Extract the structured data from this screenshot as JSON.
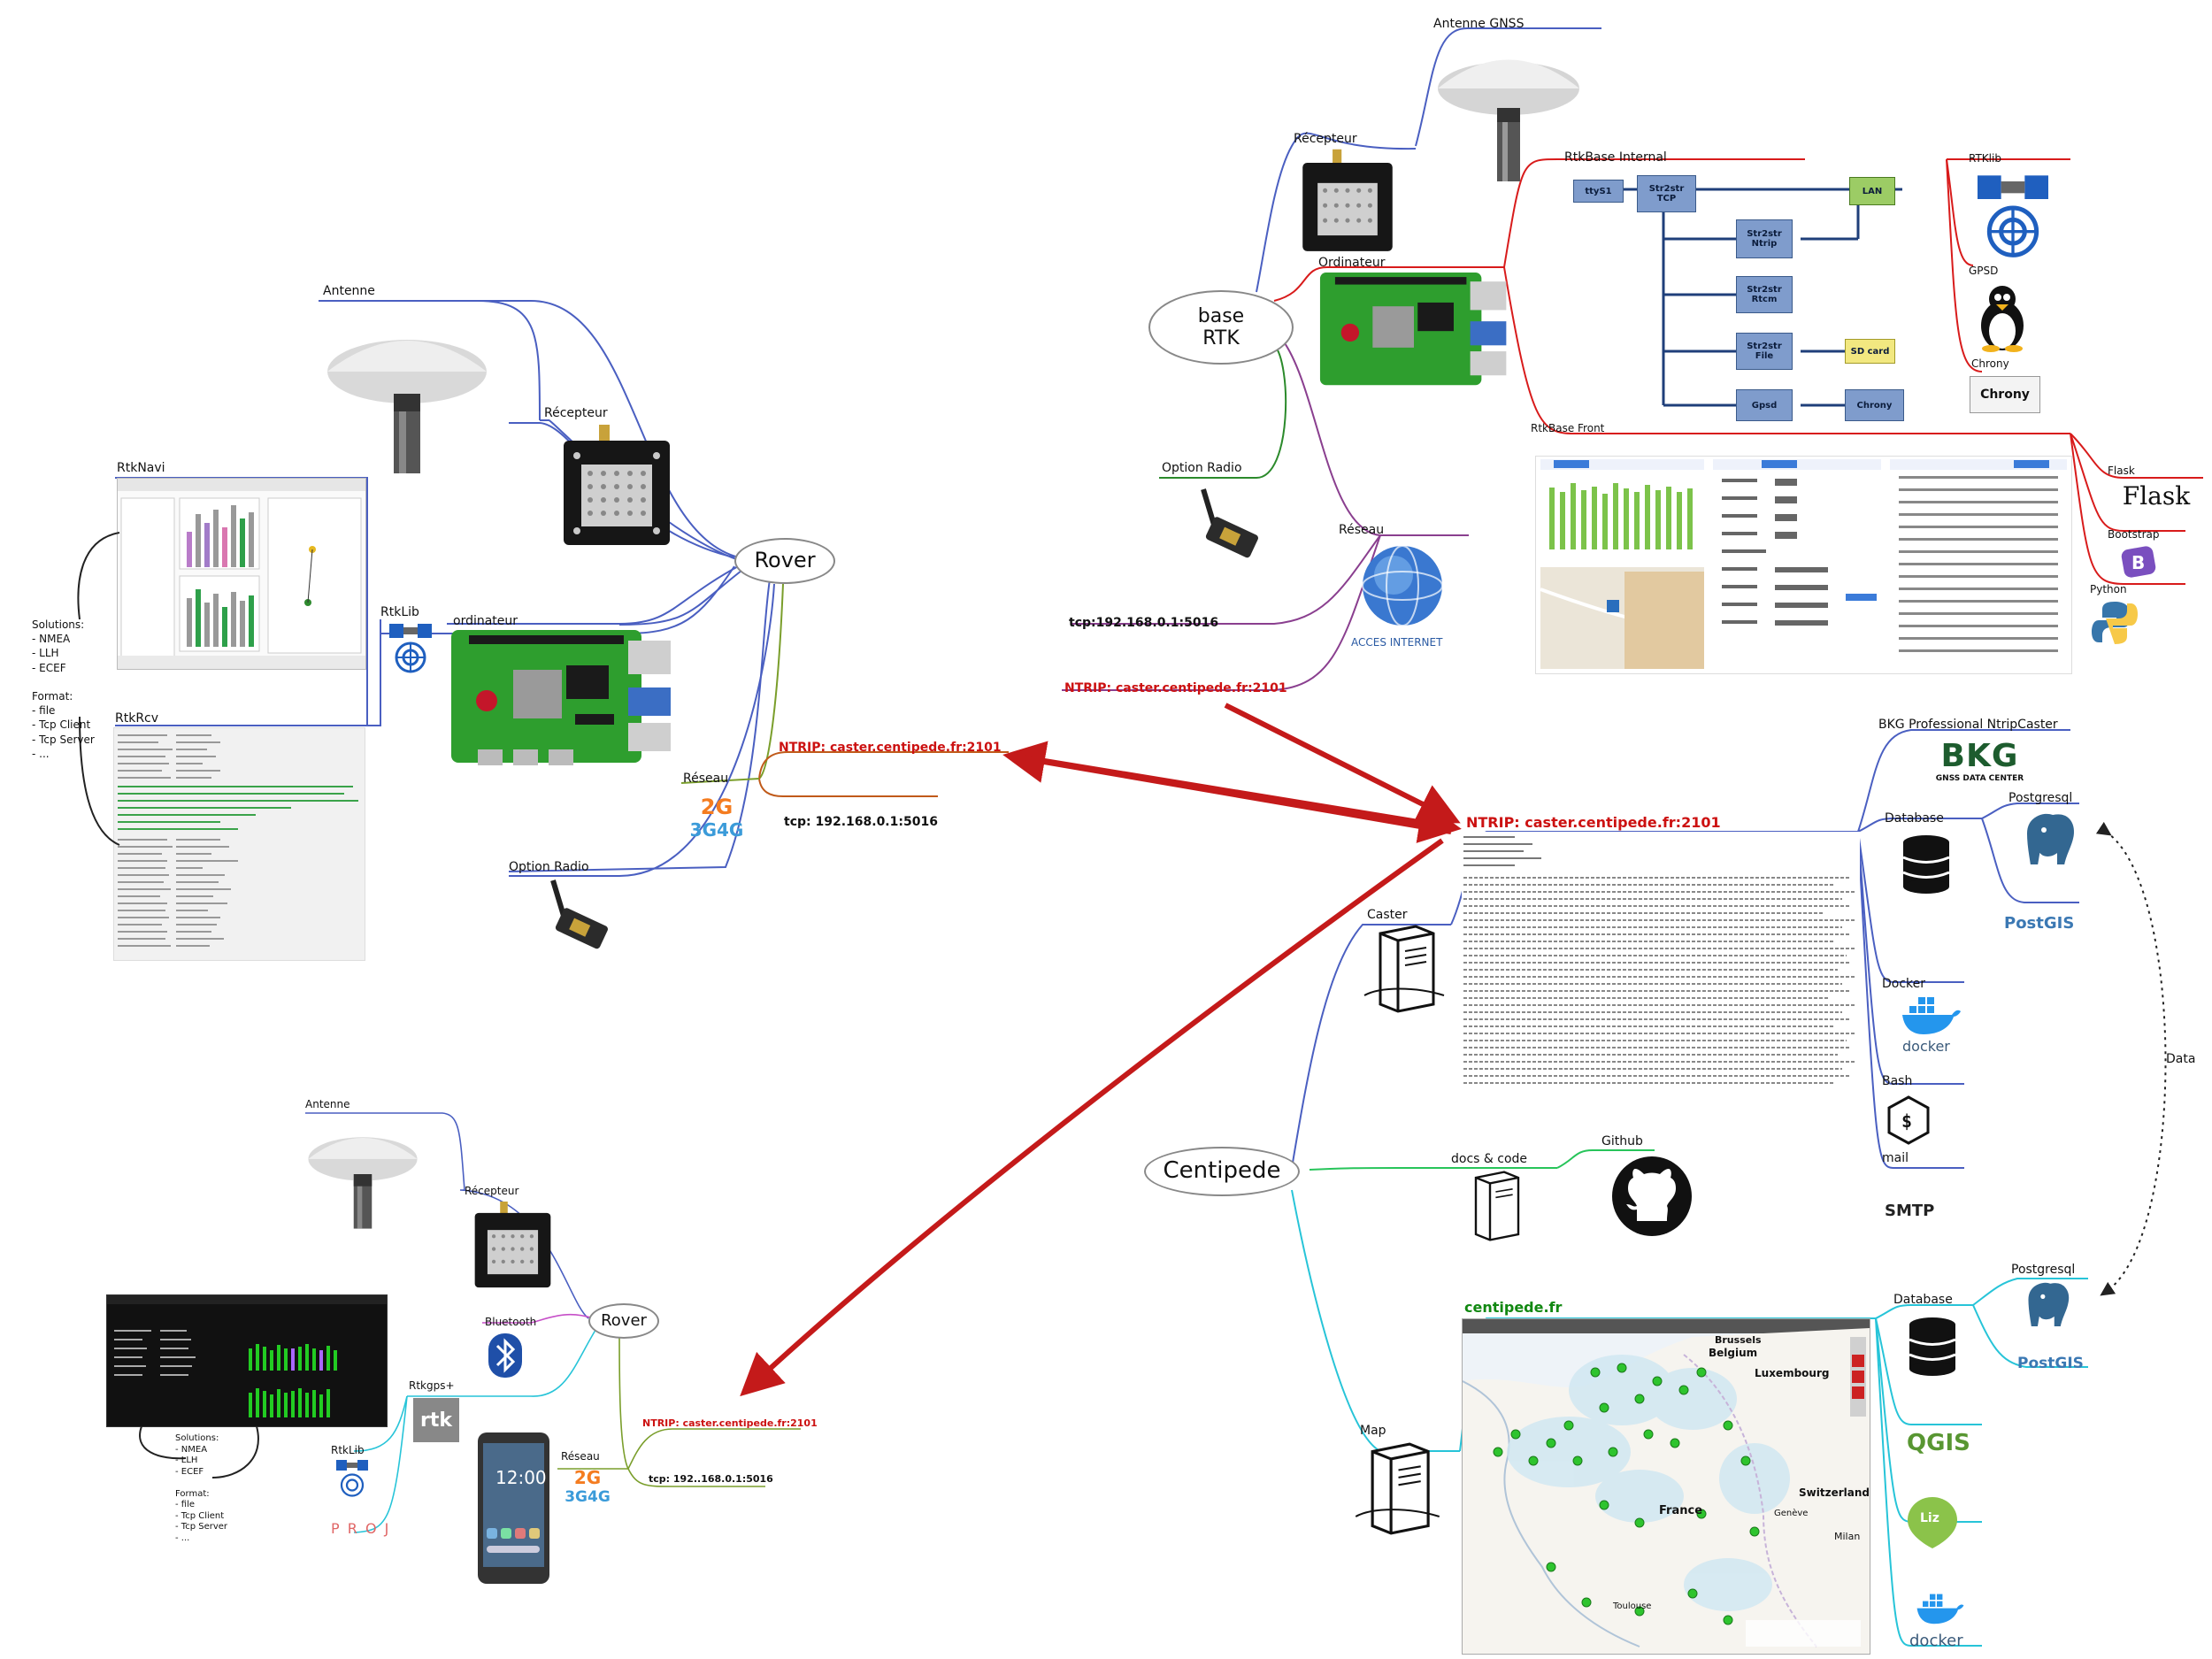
{
  "colors": {
    "rover_branch": "#4a5fc1",
    "base_branch": "#d81b1b",
    "network_branch": "#8a3f8f",
    "radio_branch": "#2b8a2b",
    "centipede_branch": "#27c4d8",
    "arrow": "#c41a1a",
    "pcb_green": "#2e9e2e"
  },
  "rover_top": {
    "node": "Rover",
    "antenne": "Antenne",
    "recepteur": "Récepteur",
    "rtknavi": "RtkNavi",
    "rtklib": "RtkLib",
    "ordinateur": "ordinateur",
    "rtkrcv": "RtkRcv",
    "reseau": "Réseau",
    "option_radio": "Option Radio",
    "ntrip": "NTRIP: caster.centipede.fr:2101",
    "tcp": "tcp: 192.168.0.1:5016",
    "network_2g": "2G",
    "network_3g4g": "3G4G",
    "solutions_text": "Solutions:\n- NMEA\n- LLH\n- ECEF\n\nFormat:\n- file\n- Tcp Client\n- Tcp Server\n- ..."
  },
  "base_rtk": {
    "node": "base\nRTK",
    "antenne_gnss": "Antenne GNSS",
    "recepteur": "Récepteur",
    "ordinateur": "Ordinateur",
    "rtkbase_internal": "RtkBase Internal",
    "rtkbase_front": "RtkBase Front",
    "option_radio": "Option Radio",
    "reseau": "Réseau",
    "tcp": "tcp:192.168.0.1:5016",
    "ntrip": "NTRIP: caster.centipede.fr:2101",
    "acces_internet": "ACCES INTERNET",
    "rtklib": "RTKlib",
    "gpsd": "GPSD",
    "chrony": "Chrony",
    "flask": "Flask",
    "bootstrap": "Bootstrap",
    "python": "Python",
    "flow": {
      "ttys1": "ttyS1",
      "str2str_tcp": "Str2str\nTCP",
      "lan": "LAN",
      "str2str_ntrip": "Str2str\nNtrip",
      "str2str_rtcm": "Str2str\nRtcm",
      "str2str_file": "Str2str\nFile",
      "sd_card": "SD card",
      "gpsd": "Gpsd",
      "chrony": "Chrony"
    }
  },
  "centipede": {
    "node": "Centipede",
    "ntrip": "NTRIP: caster.centipede.fr:2101",
    "caster": "Caster",
    "bkg": "BKG Professional NtripCaster",
    "bkg_logo": "BKG",
    "bkg_sub": "GNSS DATA CENTER",
    "database": "Database",
    "postgresql": "Postgresql",
    "postgis": "PostGIS",
    "docker": "Docker",
    "docker_logo": "docker",
    "bash": "Bash",
    "mail": "mail",
    "smtp": "SMTP",
    "data_link": "Data",
    "docs_code": "docs & code",
    "github": "Github",
    "site": "centipede.fr",
    "map": "Map",
    "database2": "Database",
    "postgresql2": "Postgresql",
    "postgis2": "PostGIS",
    "qgis": "QGIS",
    "lizmap": "Liz map",
    "docker2": "docker",
    "map_labels": [
      "Brussels",
      "Belgium",
      "Luxembourg",
      "France",
      "Switzerland",
      "Milan",
      "Genève",
      "Toulouse"
    ]
  },
  "rover_bottom": {
    "node": "Rover",
    "antenne": "Antenne",
    "recepteur": "Récepteur",
    "bluetooth": "Bluetooth",
    "rtkgps": "Rtkgps+",
    "rtklib": "RtkLib",
    "reseau": "Réseau",
    "ntrip": "NTRIP: caster.centipede.fr:2101",
    "tcp": "tcp: 192..168.0.1:5016",
    "network_2g": "2G",
    "network_3g4g": "3G4G",
    "phone_time": "12:00",
    "proj": "P R O J",
    "solutions_text": "Solutions:\n- NMEA\n- LLH\n- ECEF\n\nFormat:\n- file\n- Tcp Client\n- Tcp Server\n- ..."
  }
}
